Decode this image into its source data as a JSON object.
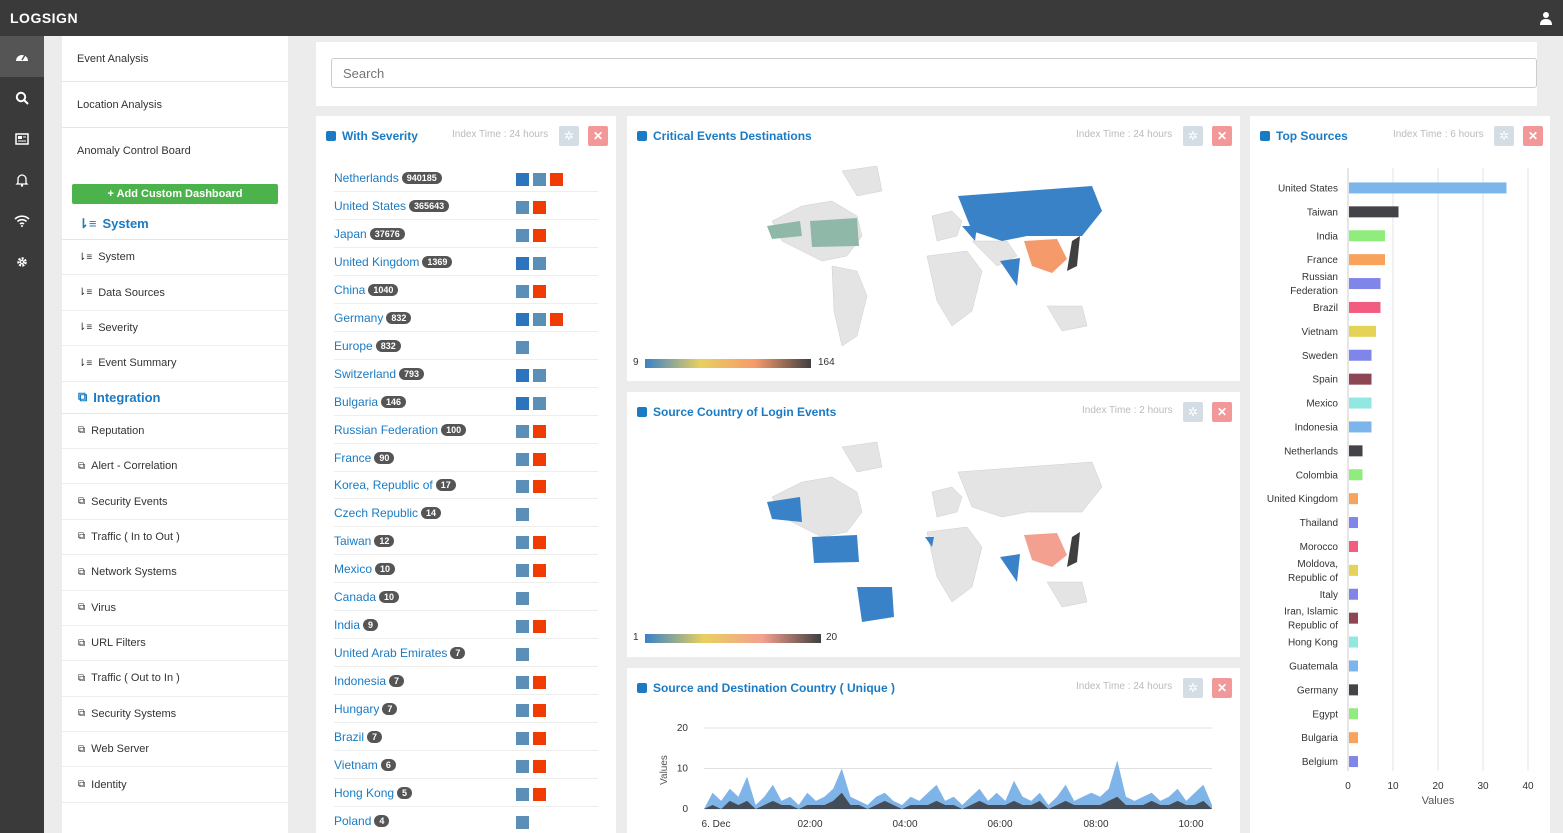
{
  "app": {
    "logo": "LOGSIGN"
  },
  "iconbar": [
    "dashboard-icon",
    "search-icon",
    "news-icon",
    "bell-icon",
    "wifi-icon",
    "gear-icon"
  ],
  "menu": {
    "items": [
      "Event Analysis",
      "Location Analysis",
      "Anomaly Control Board"
    ],
    "add_button": "+ Add Custom Dashboard",
    "system_title": "System",
    "system_items": [
      "System",
      "Data Sources",
      "Severity",
      "Event Summary"
    ],
    "integration_title": "Integration",
    "integration_items": [
      "Reputation",
      "Alert - Correlation",
      "Security Events",
      "Traffic ( In to Out )",
      "Network Systems",
      "Virus",
      "URL Filters",
      "Traffic ( Out to In )",
      "Security Systems",
      "Web Server",
      "Identity"
    ]
  },
  "search": {
    "placeholder": "Search"
  },
  "colors": {
    "accent": "#1a7bc4",
    "severity_dark": "#2c74bd",
    "severity_mid": "#5b8fb8",
    "severity_high": "#f03c00",
    "add_button": "#4cb34c"
  },
  "panels": {
    "severity": {
      "title": "With Severity",
      "index": "Index Time : 24 hours",
      "rows": [
        {
          "name": "Netherlands",
          "count": "940185",
          "levels": [
            "dark",
            "mid",
            "high"
          ]
        },
        {
          "name": "United States",
          "count": "365643",
          "levels": [
            "mid",
            "high"
          ]
        },
        {
          "name": "Japan",
          "count": "37676",
          "levels": [
            "mid",
            "high"
          ]
        },
        {
          "name": "United Kingdom",
          "count": "1369",
          "levels": [
            "dark",
            "mid"
          ]
        },
        {
          "name": "China",
          "count": "1040",
          "levels": [
            "mid",
            "high"
          ]
        },
        {
          "name": "Germany",
          "count": "832",
          "levels": [
            "dark",
            "mid",
            "high"
          ]
        },
        {
          "name": "Europe",
          "count": "832",
          "levels": [
            "mid"
          ]
        },
        {
          "name": "Switzerland",
          "count": "793",
          "levels": [
            "dark",
            "mid"
          ]
        },
        {
          "name": "Bulgaria",
          "count": "146",
          "levels": [
            "dark",
            "mid"
          ]
        },
        {
          "name": "Russian Federation",
          "count": "100",
          "levels": [
            "mid",
            "high"
          ]
        },
        {
          "name": "France",
          "count": "90",
          "levels": [
            "mid",
            "high"
          ]
        },
        {
          "name": "Korea, Republic of",
          "count": "17",
          "levels": [
            "mid",
            "high"
          ]
        },
        {
          "name": "Czech Republic",
          "count": "14",
          "levels": [
            "mid"
          ]
        },
        {
          "name": "Taiwan",
          "count": "12",
          "levels": [
            "mid",
            "high"
          ]
        },
        {
          "name": "Mexico",
          "count": "10",
          "levels": [
            "mid",
            "high"
          ]
        },
        {
          "name": "Canada",
          "count": "10",
          "levels": [
            "mid"
          ]
        },
        {
          "name": "India",
          "count": "9",
          "levels": [
            "mid",
            "high"
          ]
        },
        {
          "name": "United Arab Emirates",
          "count": "7",
          "levels": [
            "mid"
          ]
        },
        {
          "name": "Indonesia",
          "count": "7",
          "levels": [
            "mid",
            "high"
          ]
        },
        {
          "name": "Hungary",
          "count": "7",
          "levels": [
            "mid",
            "high"
          ]
        },
        {
          "name": "Brazil",
          "count": "7",
          "levels": [
            "mid",
            "high"
          ]
        },
        {
          "name": "Vietnam",
          "count": "6",
          "levels": [
            "mid",
            "high"
          ]
        },
        {
          "name": "Hong Kong",
          "count": "5",
          "levels": [
            "mid",
            "high"
          ]
        },
        {
          "name": "Poland",
          "count": "4",
          "levels": [
            "mid"
          ]
        }
      ]
    },
    "critical": {
      "title": "Critical Events Destinations",
      "index": "Index Time : 24 hours",
      "scale_min": "9",
      "scale_max": "164"
    },
    "login": {
      "title": "Source Country of Login Events",
      "index": "Index Time : 2 hours",
      "scale_min": "1",
      "scale_max": "20"
    },
    "srcdst": {
      "title": "Source and Destination Country ( Unique )",
      "index": "Index Time : 24 hours"
    },
    "top": {
      "title": "Top Sources",
      "index": "Index Time : 6 hours"
    }
  },
  "chart_data": [
    {
      "type": "area",
      "title": "Source and Destination Country ( Unique )",
      "ylabel": "Values",
      "ylim": [
        0,
        20
      ],
      "yticks": [
        "0",
        "10",
        "20"
      ],
      "xticks": [
        "6. Dec",
        "02:00",
        "04:00",
        "06:00",
        "08:00",
        "10:00"
      ],
      "series": [
        {
          "color": "#7fb4e8",
          "values": [
            0,
            4,
            2,
            5,
            3,
            8,
            1,
            3,
            6,
            2,
            3,
            1,
            4,
            2,
            3,
            5,
            10,
            3,
            2,
            1,
            3,
            4,
            2,
            1,
            3,
            2,
            4,
            6,
            2,
            3,
            1,
            3,
            5,
            2,
            4,
            2,
            7,
            3,
            2,
            4,
            1,
            3,
            6,
            2,
            3,
            4,
            3,
            5,
            12,
            3,
            2,
            3,
            4,
            2,
            3,
            5,
            2,
            4,
            6,
            1
          ]
        },
        {
          "color": "#444c57",
          "values": [
            0,
            1,
            0,
            2,
            1,
            2,
            0,
            1,
            2,
            1,
            1,
            0,
            1,
            1,
            1,
            2,
            4,
            1,
            1,
            0,
            1,
            2,
            1,
            0,
            1,
            1,
            1,
            2,
            1,
            1,
            0,
            1,
            2,
            1,
            1,
            1,
            2,
            1,
            1,
            2,
            0,
            1,
            2,
            1,
            1,
            1,
            1,
            2,
            3,
            1,
            1,
            1,
            2,
            1,
            1,
            2,
            1,
            1,
            2,
            0
          ]
        }
      ]
    },
    {
      "type": "bar",
      "title": "Top Sources",
      "xlabel": "Values",
      "xlim": [
        0,
        40
      ],
      "xticks": [
        "0",
        "10",
        "20",
        "30",
        "40"
      ],
      "categories": [
        "United States",
        "Taiwan",
        "India",
        "France",
        "Russian Federation",
        "Brazil",
        "Vietnam",
        "Sweden",
        "Spain",
        "Mexico",
        "Indonesia",
        "Netherlands",
        "Colombia",
        "United Kingdom",
        "Thailand",
        "Morocco",
        "Moldova, Republic of",
        "Italy",
        "Iran, Islamic Republic of",
        "Hong Kong",
        "Guatemala",
        "Germany",
        "Egypt",
        "Bulgaria",
        "Belgium"
      ],
      "values": [
        35,
        11,
        8,
        8,
        7,
        7,
        6,
        5,
        5,
        5,
        5,
        3,
        3,
        2,
        2,
        2,
        2,
        2,
        2,
        2,
        2,
        2,
        2,
        2,
        2
      ],
      "colors": [
        "#7cb5ec",
        "#434348",
        "#90ed7d",
        "#f7a35c",
        "#8085e9",
        "#f15c80",
        "#e4d354",
        "#8085e9",
        "#8d4653",
        "#91e8e1",
        "#7cb5ec",
        "#434348",
        "#90ed7d",
        "#f7a35c",
        "#8085e9",
        "#f15c80",
        "#e4d354",
        "#8085e9",
        "#8d4653",
        "#91e8e1",
        "#7cb5ec",
        "#434348",
        "#90ed7d",
        "#f7a35c",
        "#8085e9"
      ]
    }
  ]
}
